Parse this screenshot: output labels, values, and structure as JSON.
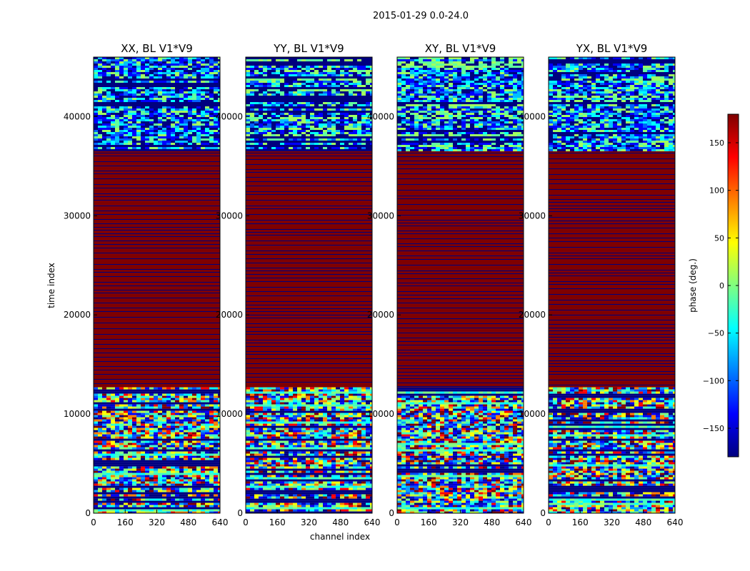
{
  "chart_data": {
    "type": "heatmap",
    "title": "2015-01-29 0.0-24.0",
    "xlabel": "channel index",
    "ylabel": "time index",
    "xlim": [
      0,
      640
    ],
    "ylim": [
      0,
      46000
    ],
    "x_ticks": [
      0,
      160,
      320,
      480,
      640
    ],
    "y_ticks": [
      0,
      10000,
      20000,
      30000,
      40000
    ],
    "panels": [
      {
        "title": "XX, BL V1*V9",
        "polarization": "XX",
        "baseline": "V1*V9"
      },
      {
        "title": "YY, BL V1*V9",
        "polarization": "YY",
        "baseline": "V1*V9"
      },
      {
        "title": "XY, BL V1*V9",
        "polarization": "XY",
        "baseline": "V1*V9"
      },
      {
        "title": "YX, BL V1*V9",
        "polarization": "YX",
        "baseline": "V1*V9"
      }
    ],
    "regions": [
      {
        "from": 0,
        "to": 12700,
        "pattern": "noisy phase, mixed values"
      },
      {
        "from": 12700,
        "to": 36500,
        "pattern": "saturated +180 deg with thin -180 deg rows"
      },
      {
        "from": 36500,
        "to": 46000,
        "pattern": "noisy phase, mostly negative values"
      }
    ],
    "colorbar": {
      "label": "phase (deg.)",
      "range": [
        -180,
        180
      ],
      "ticks": [
        150,
        100,
        50,
        0,
        -50,
        -100,
        -150
      ],
      "tick_labels": [
        "150",
        "100",
        "50",
        "0",
        "−50",
        "−100",
        "−150"
      ],
      "colormap": [
        "#00007f",
        "#0000ff",
        "#0080ff",
        "#00ffff",
        "#80ff80",
        "#ffff00",
        "#ff8000",
        "#ff0000",
        "#7f0000"
      ]
    }
  }
}
